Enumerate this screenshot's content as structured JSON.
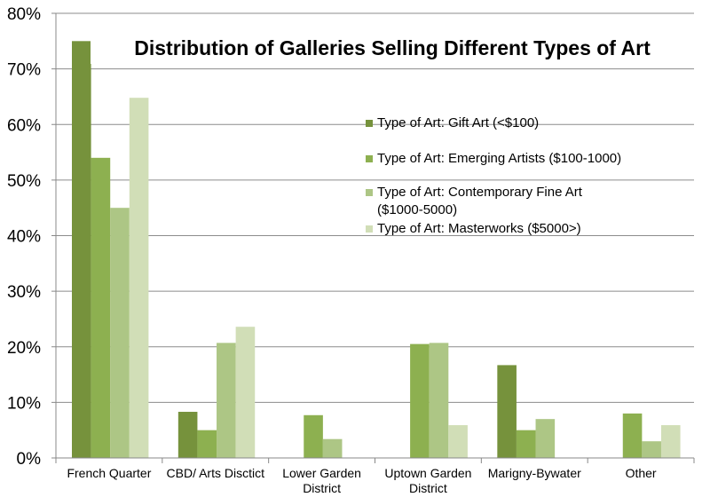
{
  "chart_data": {
    "type": "bar",
    "title": "Distribution of Galleries Selling Different Types of Art",
    "xlabel": "",
    "ylabel": "",
    "ylim": [
      0,
      80
    ],
    "y_ticks": [
      "0%",
      "10%",
      "20%",
      "30%",
      "40%",
      "50%",
      "60%",
      "70%",
      "80%"
    ],
    "y_unit": "%",
    "grid": true,
    "legend_position": "right",
    "categories": [
      [
        "French Quarter"
      ],
      [
        "CBD/ Arts Disctict"
      ],
      [
        "Lower Garden",
        "District"
      ],
      [
        "Uptown Garden",
        "District"
      ],
      [
        "Marigny-Bywater"
      ],
      [
        "Other"
      ]
    ],
    "series": [
      {
        "name": "Type of Art: Gift Art (<$100)",
        "legend_lines": [
          "Type of Art: Gift Art (<$100)"
        ],
        "color": "#76923c",
        "values": [
          75,
          8.3,
          0,
          0,
          16.7,
          0
        ]
      },
      {
        "name": "Type of Art: Emerging Artists ($100-1000)",
        "legend_lines": [
          "Type of Art: Emerging Artists ($100-1000)"
        ],
        "color": "#8db050",
        "values": [
          54,
          5,
          7.7,
          20.5,
          5,
          8
        ]
      },
      {
        "name": "Type of Art: Contemporary Fine Art ($1000-5000)",
        "legend_lines": [
          "Type of Art: Contemporary Fine Art",
          "($1000-5000)"
        ],
        "color": "#adc685",
        "values": [
          45,
          20.7,
          3.4,
          20.7,
          7,
          3
        ]
      },
      {
        "name": "Type of Art: Masterworks ($5000>)",
        "legend_lines": [
          "Type of Art: Masterworks ($5000>)"
        ],
        "color": "#d1deb7",
        "values": [
          64.8,
          23.6,
          0,
          5.9,
          0,
          5.9
        ]
      }
    ]
  }
}
